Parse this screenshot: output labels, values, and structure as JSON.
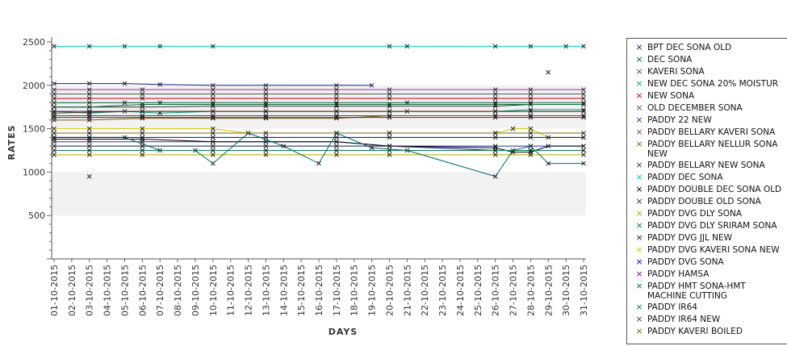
{
  "chart_data": {
    "type": "line",
    "title": "",
    "xlabel": "DAYS",
    "ylabel": "RATES",
    "ylim": [
      0,
      2500
    ],
    "yticks": [
      500,
      1000,
      1500,
      2000,
      2500
    ],
    "grid": false,
    "legend_position": "right",
    "shaded_bands": [
      [
        500,
        1000
      ],
      [
        1500,
        2000
      ]
    ],
    "categories": [
      "01-10-2015",
      "02-10-2015",
      "03-10-2015",
      "04-10-2015",
      "05-10-2015",
      "06-10-2015",
      "07-10-2015",
      "08-10-2015",
      "09-10-2015",
      "10-10-2015",
      "11-10-2015",
      "12-10-2015",
      "13-10-2015",
      "14-10-2015",
      "15-10-2015",
      "16-10-2015",
      "17-10-2015",
      "18-10-2015",
      "19-10-2015",
      "20-10-2015",
      "21-10-2015",
      "22-10-2015",
      "23-10-2015",
      "24-10-2015",
      "25-10-2015",
      "26-10-2015",
      "27-10-2015",
      "28-10-2015",
      "29-10-2015",
      "30-10-2015",
      "31-10-2015"
    ],
    "series": [
      {
        "name": "BPT DEC SONA OLD",
        "color": "#1a1a8c",
        "points": [
          [
            0,
            2020
          ],
          [
            2,
            2020
          ],
          [
            4,
            2020
          ],
          [
            6,
            2010
          ],
          [
            9,
            2000
          ],
          [
            12,
            2000
          ],
          [
            16,
            2000
          ],
          [
            18,
            2000
          ]
        ]
      },
      {
        "name": "DEC SONA",
        "color": "#0b5a2a",
        "points": [
          [
            0,
            1800
          ],
          [
            2,
            1800
          ],
          [
            4,
            1800
          ],
          [
            6,
            1800
          ],
          [
            9,
            1800
          ],
          [
            12,
            1800
          ],
          [
            16,
            1800
          ],
          [
            20,
            1800
          ],
          [
            25,
            1800
          ],
          [
            27,
            1800
          ],
          [
            30,
            1800
          ]
        ]
      },
      {
        "name": "KAVERI SONA",
        "color": "#0a7a0a",
        "points": [
          [
            0,
            1650
          ],
          [
            2,
            1650
          ],
          [
            5,
            1650
          ],
          [
            9,
            1650
          ],
          [
            12,
            1650
          ],
          [
            16,
            1650
          ],
          [
            19,
            1650
          ],
          [
            25,
            1650
          ],
          [
            27,
            1650
          ],
          [
            30,
            1650
          ]
        ]
      },
      {
        "name": "NEW DEC SONA 20% MOISTUR",
        "color": "#00a88a",
        "points": [
          [
            0,
            1700
          ],
          [
            2,
            1680
          ],
          [
            4,
            1700
          ],
          [
            6,
            1680
          ],
          [
            9,
            1700
          ],
          [
            12,
            1700
          ],
          [
            16,
            1700
          ],
          [
            20,
            1700
          ],
          [
            25,
            1700
          ],
          [
            27,
            1720
          ],
          [
            30,
            1720
          ]
        ]
      },
      {
        "name": "NEW SONA",
        "color": "#cc0000",
        "points": [
          [
            0,
            1850
          ],
          [
            2,
            1850
          ],
          [
            5,
            1850
          ],
          [
            9,
            1850
          ],
          [
            12,
            1850
          ],
          [
            16,
            1850
          ],
          [
            19,
            1850
          ],
          [
            25,
            1850
          ],
          [
            27,
            1850
          ],
          [
            30,
            1850
          ]
        ]
      },
      {
        "name": "OLD DECEMBER SONA",
        "color": "#555555",
        "points": [
          [
            0,
            1900
          ],
          [
            2,
            1900
          ],
          [
            5,
            1900
          ],
          [
            9,
            1900
          ],
          [
            12,
            1900
          ],
          [
            16,
            1900
          ],
          [
            19,
            1900
          ],
          [
            25,
            1900
          ],
          [
            27,
            1900
          ],
          [
            30,
            1900
          ]
        ]
      },
      {
        "name": "PADDY 22 NEW",
        "color": "#2a2ab8",
        "points": [
          [
            0,
            1350
          ],
          [
            2,
            1350
          ],
          [
            5,
            1350
          ],
          [
            9,
            1350
          ],
          [
            12,
            1350
          ],
          [
            16,
            1350
          ],
          [
            19,
            1300
          ],
          [
            25,
            1300
          ],
          [
            27,
            1300
          ],
          [
            30,
            1300
          ]
        ]
      },
      {
        "name": "PADDY BELLARY KAVERI SONA",
        "color": "#9a2a9a",
        "points": [
          [
            0,
            1950
          ],
          [
            2,
            1950
          ],
          [
            5,
            1950
          ],
          [
            9,
            1950
          ],
          [
            12,
            1950
          ],
          [
            16,
            1950
          ],
          [
            19,
            1950
          ],
          [
            25,
            1950
          ],
          [
            27,
            1950
          ],
          [
            30,
            1950
          ]
        ]
      },
      {
        "name": "PADDY BELLARY NELLUR SONA NEW",
        "color": "#7a5a00",
        "points": [
          [
            0,
            1600
          ],
          [
            2,
            1600
          ],
          [
            5,
            1620
          ],
          [
            9,
            1620
          ],
          [
            12,
            1620
          ],
          [
            16,
            1620
          ],
          [
            19,
            1650
          ],
          [
            25,
            1650
          ],
          [
            27,
            1650
          ],
          [
            30,
            1650
          ]
        ]
      },
      {
        "name": "PADDY BELLARY NEW SONA",
        "color": "#333333",
        "points": [
          [
            0,
            1750
          ],
          [
            2,
            1750
          ],
          [
            5,
            1750
          ],
          [
            9,
            1760
          ],
          [
            12,
            1760
          ],
          [
            16,
            1760
          ],
          [
            19,
            1760
          ],
          [
            25,
            1760
          ],
          [
            27,
            1780
          ],
          [
            30,
            1780
          ]
        ]
      },
      {
        "name": "PADDY DEC SONA",
        "color": "#00c8b4",
        "points": [
          [
            0,
            2450
          ],
          [
            2,
            2450
          ],
          [
            4,
            2450
          ],
          [
            6,
            2450
          ],
          [
            9,
            2450
          ],
          [
            19,
            2450
          ],
          [
            20,
            2450
          ],
          [
            25,
            2450
          ],
          [
            27,
            2450
          ],
          [
            29,
            2450
          ],
          [
            30,
            2450
          ]
        ]
      },
      {
        "name": "PADDY DOUBLE DEC SONA OLD",
        "color": "#000000",
        "points": [
          [
            0,
            1380
          ],
          [
            2,
            1380
          ],
          [
            5,
            1380
          ],
          [
            9,
            1350
          ],
          [
            12,
            1350
          ],
          [
            16,
            1350
          ],
          [
            19,
            1300
          ],
          [
            25,
            1280
          ],
          [
            26,
            1230
          ],
          [
            27,
            1230
          ],
          [
            28,
            1300
          ],
          [
            30,
            1300
          ]
        ]
      },
      {
        "name": "PADDY DOUBLE OLD SONA",
        "color": "#3a1a6a",
        "points": [
          [
            0,
            1700
          ],
          [
            2,
            1700
          ],
          [
            5,
            1700
          ],
          [
            9,
            1700
          ],
          [
            12,
            1700
          ],
          [
            16,
            1700
          ],
          [
            19,
            1700
          ],
          [
            25,
            1700
          ],
          [
            27,
            1700
          ],
          [
            30,
            1700
          ]
        ]
      },
      {
        "name": "PADDY DVG DLY SONA",
        "color": "#b8a000",
        "points": [
          [
            0,
            1200
          ],
          [
            2,
            1200
          ],
          [
            5,
            1200
          ],
          [
            9,
            1200
          ],
          [
            12,
            1200
          ],
          [
            16,
            1200
          ],
          [
            19,
            1200
          ],
          [
            25,
            1200
          ],
          [
            27,
            1200
          ],
          [
            30,
            1200
          ]
        ]
      },
      {
        "name": "PADDY DVG DLY SRIRAM SONA",
        "color": "#006a6a",
        "points": [
          [
            0,
            1400
          ],
          [
            2,
            1400
          ],
          [
            4,
            1400
          ],
          [
            6,
            1250
          ],
          [
            8,
            1250
          ],
          [
            9,
            1100
          ],
          [
            11,
            1450
          ],
          [
            13,
            1300
          ],
          [
            15,
            1100
          ],
          [
            16,
            1450
          ],
          [
            18,
            1280
          ],
          [
            20,
            1250
          ],
          [
            25,
            950
          ],
          [
            26,
            1250
          ],
          [
            27,
            1300
          ],
          [
            28,
            1100
          ],
          [
            30,
            1100
          ]
        ]
      },
      {
        "name": "PADDY DVG JJL NEW",
        "color": "#1a1a5a",
        "points": [
          [
            0,
            1300
          ],
          [
            2,
            1300
          ],
          [
            5,
            1300
          ],
          [
            9,
            1300
          ],
          [
            12,
            1300
          ],
          [
            16,
            1300
          ],
          [
            19,
            1300
          ],
          [
            25,
            1250
          ],
          [
            27,
            1250
          ],
          [
            30,
            1250
          ]
        ]
      },
      {
        "name": "PADDY DVG KAVERI SONA NEW",
        "color": "#d8c400",
        "points": [
          [
            0,
            1500
          ],
          [
            2,
            1500
          ],
          [
            5,
            1500
          ],
          [
            9,
            1500
          ],
          [
            11,
            1450
          ],
          [
            16,
            1450
          ],
          [
            19,
            1450
          ],
          [
            25,
            1450
          ],
          [
            26,
            1500
          ],
          [
            27,
            1500
          ],
          [
            28,
            1400
          ],
          [
            30,
            1400
          ]
        ]
      },
      {
        "name": "PADDY DVG SONA",
        "color": "#0000cc",
        "points": [
          [
            0,
            1400
          ],
          [
            2,
            1400
          ],
          [
            5,
            1400
          ],
          [
            9,
            1400
          ],
          [
            12,
            1400
          ],
          [
            16,
            1400
          ],
          [
            19,
            1400
          ],
          [
            25,
            1400
          ],
          [
            27,
            1400
          ],
          [
            30,
            1400
          ]
        ]
      },
      {
        "name": "PADDY HAMSA",
        "color": "#8a008a",
        "points": [
          [
            0,
            1630
          ],
          [
            2,
            1630
          ],
          [
            5,
            1630
          ],
          [
            9,
            1630
          ],
          [
            12,
            1630
          ],
          [
            16,
            1630
          ],
          [
            19,
            1630
          ],
          [
            25,
            1630
          ],
          [
            27,
            1630
          ],
          [
            30,
            1630
          ]
        ]
      },
      {
        "name": "PADDY HMT SONA-HMT MACHINE CUTTING",
        "color": "#0a6a3a",
        "points": [
          [
            0,
            1750
          ],
          [
            2,
            1750
          ],
          [
            5,
            1780
          ],
          [
            9,
            1780
          ],
          [
            12,
            1780
          ],
          [
            16,
            1780
          ],
          [
            19,
            1780
          ],
          [
            25,
            1780
          ],
          [
            27,
            1780
          ],
          [
            30,
            1780
          ]
        ]
      },
      {
        "name": "PADDY IR64",
        "color": "#0a7a5a",
        "points": [
          [
            0,
            1250
          ],
          [
            2,
            1250
          ],
          [
            5,
            1250
          ],
          [
            9,
            1250
          ],
          [
            12,
            1250
          ],
          [
            16,
            1250
          ],
          [
            19,
            1250
          ],
          [
            25,
            1250
          ],
          [
            27,
            1250
          ],
          [
            30,
            1250
          ]
        ]
      },
      {
        "name": "PADDY IR64 NEW",
        "color": "#5a3a1a",
        "points": [
          [
            0,
            1680
          ],
          [
            2,
            1690
          ],
          [
            5,
            1700
          ],
          [
            9,
            1700
          ],
          [
            12,
            1700
          ],
          [
            16,
            1700
          ],
          [
            19,
            1700
          ],
          [
            25,
            1700
          ],
          [
            27,
            1700
          ],
          [
            30,
            1700
          ]
        ]
      },
      {
        "name": "PADDY KAVERI BOILED",
        "color": "#7a6a00",
        "points": [
          [
            0,
            1450
          ],
          [
            2,
            1450
          ],
          [
            5,
            1450
          ],
          [
            9,
            1450
          ],
          [
            12,
            1450
          ],
          [
            16,
            1450
          ],
          [
            19,
            1450
          ],
          [
            25,
            1450
          ],
          [
            27,
            1450
          ],
          [
            30,
            1450
          ]
        ]
      }
    ]
  }
}
